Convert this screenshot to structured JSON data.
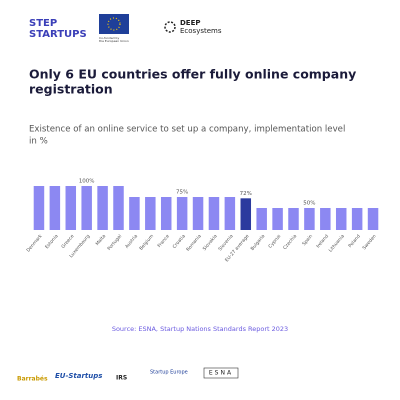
{
  "header": {
    "logo_left": [
      "STEP",
      "STARTUPS"
    ],
    "eu_logo_text": [
      "Co-funded by",
      "the European Union"
    ],
    "logo_right": [
      "DEEP",
      "Ecosystems"
    ]
  },
  "chart_data": {
    "type": "bar",
    "title": [
      "Only 6 EU countries offer fully online company",
      "registration"
    ],
    "subtitle": [
      "Existence of an online service to set up a company, implementation level",
      "in %"
    ],
    "categories": [
      "Denmark",
      "Estonia",
      "Greece",
      "Luxembourg",
      "Malta",
      "Portugal",
      "Austria",
      "Belgium",
      "France",
      "Croatia",
      "Romania",
      "Slovakia",
      "Slovenia",
      "EU-27 average",
      "Bulgaria",
      "Cyprus",
      "Czechia",
      "Spain",
      "Ireland",
      "Lithuania",
      "Poland",
      "Sweden"
    ],
    "values": [
      100,
      100,
      100,
      100,
      100,
      100,
      75,
      75,
      75,
      75,
      75,
      75,
      75,
      72,
      50,
      50,
      50,
      50,
      50,
      50,
      50,
      50
    ],
    "value_labels": [
      null,
      null,
      null,
      "100%",
      null,
      null,
      null,
      null,
      null,
      "75%",
      null,
      null,
      null,
      "72%",
      null,
      null,
      null,
      "50%",
      null,
      null,
      null,
      null
    ],
    "colors": [
      "#8c88f2",
      "#8c88f2",
      "#8c88f2",
      "#8c88f2",
      "#8c88f2",
      "#8c88f2",
      "#8c88f2",
      "#8c88f2",
      "#8c88f2",
      "#8c88f2",
      "#8c88f2",
      "#8c88f2",
      "#8c88f2",
      "#2b3a9e",
      "#8c88f2",
      "#8c88f2",
      "#8c88f2",
      "#8c88f2",
      "#8c88f2",
      "#8c88f2",
      "#8c88f2",
      "#8c88f2"
    ],
    "source": "Source: ESNA, Startup Nations Standards Report 2023"
  },
  "footer": {
    "logos": [
      "Barrabés",
      "EU-Startups",
      "IRS",
      "Startup Europe",
      "ESNA"
    ]
  }
}
